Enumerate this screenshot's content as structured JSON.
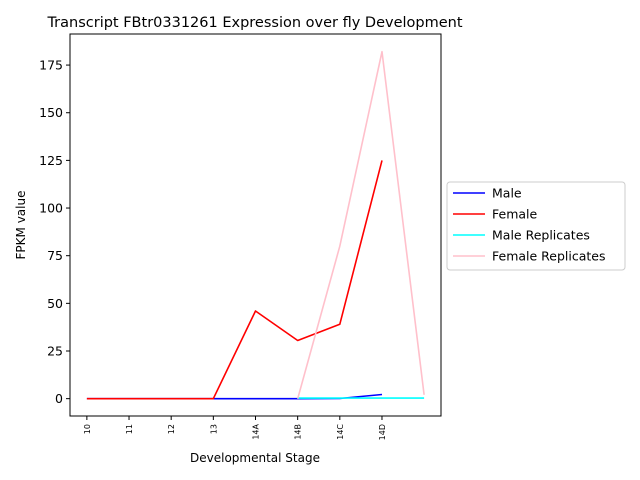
{
  "chart_data": {
    "type": "line",
    "title": "Transcript FBtr0331261 Expression over fly Development",
    "xlabel": "Developmental Stage",
    "ylabel": "FPKM value",
    "categories": [
      "10",
      "11",
      "12",
      "13",
      "14A",
      "14B",
      "14C",
      "14D"
    ],
    "xlim": [
      -0.4,
      8.4
    ],
    "ylim": [
      -9.1,
      191.3
    ],
    "yticks": [
      0,
      25,
      50,
      75,
      100,
      125,
      150,
      175
    ],
    "grid": false,
    "legend_position": "center-right outside",
    "series": [
      {
        "name": "Male",
        "color": "#0000ff",
        "x": [
          0,
          1,
          2,
          3,
          4,
          5,
          6,
          7
        ],
        "values": [
          0,
          0,
          0,
          0,
          0,
          0,
          0.1,
          2.2
        ]
      },
      {
        "name": "Female",
        "color": "#ff0000",
        "x": [
          0,
          1,
          2,
          3,
          4,
          5,
          6,
          7
        ],
        "values": [
          0,
          0,
          0,
          0,
          46,
          30.5,
          39,
          125
        ]
      },
      {
        "name": "Male Replicates",
        "color": "#00ffff",
        "x": [
          5,
          6,
          7,
          8
        ],
        "values": [
          0.3,
          0.3,
          0.3,
          0.3
        ]
      },
      {
        "name": "Female Replicates",
        "color": "#ffc0cb",
        "x": [
          5,
          6,
          7,
          8
        ],
        "values": [
          0,
          80,
          182,
          2
        ]
      }
    ]
  }
}
